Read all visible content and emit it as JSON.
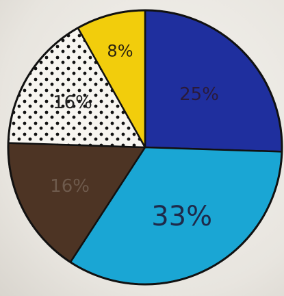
{
  "chart_data": {
    "type": "pie",
    "title": "",
    "slices": [
      {
        "label": "25%",
        "value": 25,
        "color": "#1f2f9e",
        "pattern": "solid",
        "label_color": "#2a1a3a"
      },
      {
        "label": "33%",
        "value": 33,
        "color": "#1aa6d4",
        "pattern": "solid",
        "label_color": "#1e2a4a"
      },
      {
        "label": "16%",
        "value": 16,
        "color": "#4d3424",
        "pattern": "solid",
        "label_color": "#6e5a4c"
      },
      {
        "label": "16%",
        "value": 16,
        "color": "#f7f5f0",
        "pattern": "dots",
        "label_color": "#222222"
      },
      {
        "label": "8%",
        "value": 8,
        "color": "#f2cd0c",
        "pattern": "solid",
        "label_color": "#2a2210"
      }
    ],
    "start_angle_deg": 0,
    "direction": "clockwise",
    "legend": "none"
  }
}
